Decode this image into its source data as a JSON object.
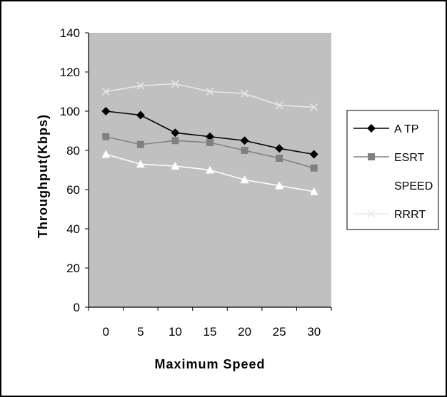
{
  "chart_data": {
    "type": "line",
    "title": "",
    "xlabel": "Maximum Speed",
    "ylabel": "Throughput(Kbps)",
    "x": [
      0,
      5,
      10,
      15,
      20,
      25,
      30
    ],
    "x_tick_labels": [
      "0",
      "5",
      "10",
      "15",
      "20",
      "25",
      "30"
    ],
    "y_ticks": [
      0,
      20,
      40,
      60,
      80,
      100,
      120,
      140
    ],
    "ylim": [
      0,
      140
    ],
    "grid": false,
    "plot_background": "#c0c0c0",
    "legend_position": "right",
    "series": [
      {
        "name": "A TP",
        "values": [
          100,
          98,
          89,
          87,
          85,
          81,
          78
        ],
        "color": "#000000",
        "marker": "diamond"
      },
      {
        "name": "ESRT",
        "values": [
          87,
          83,
          85,
          84,
          80,
          76,
          71
        ],
        "color": "#808080",
        "marker": "square"
      },
      {
        "name": "SPEED",
        "values": [
          78,
          73,
          72,
          70,
          65,
          62,
          59
        ],
        "color": "#ffffff",
        "marker": "triangle"
      },
      {
        "name": "RRRT",
        "values": [
          110,
          113,
          114,
          110,
          109,
          103,
          102
        ],
        "color": "#e8e8e8",
        "marker": "x"
      }
    ]
  }
}
